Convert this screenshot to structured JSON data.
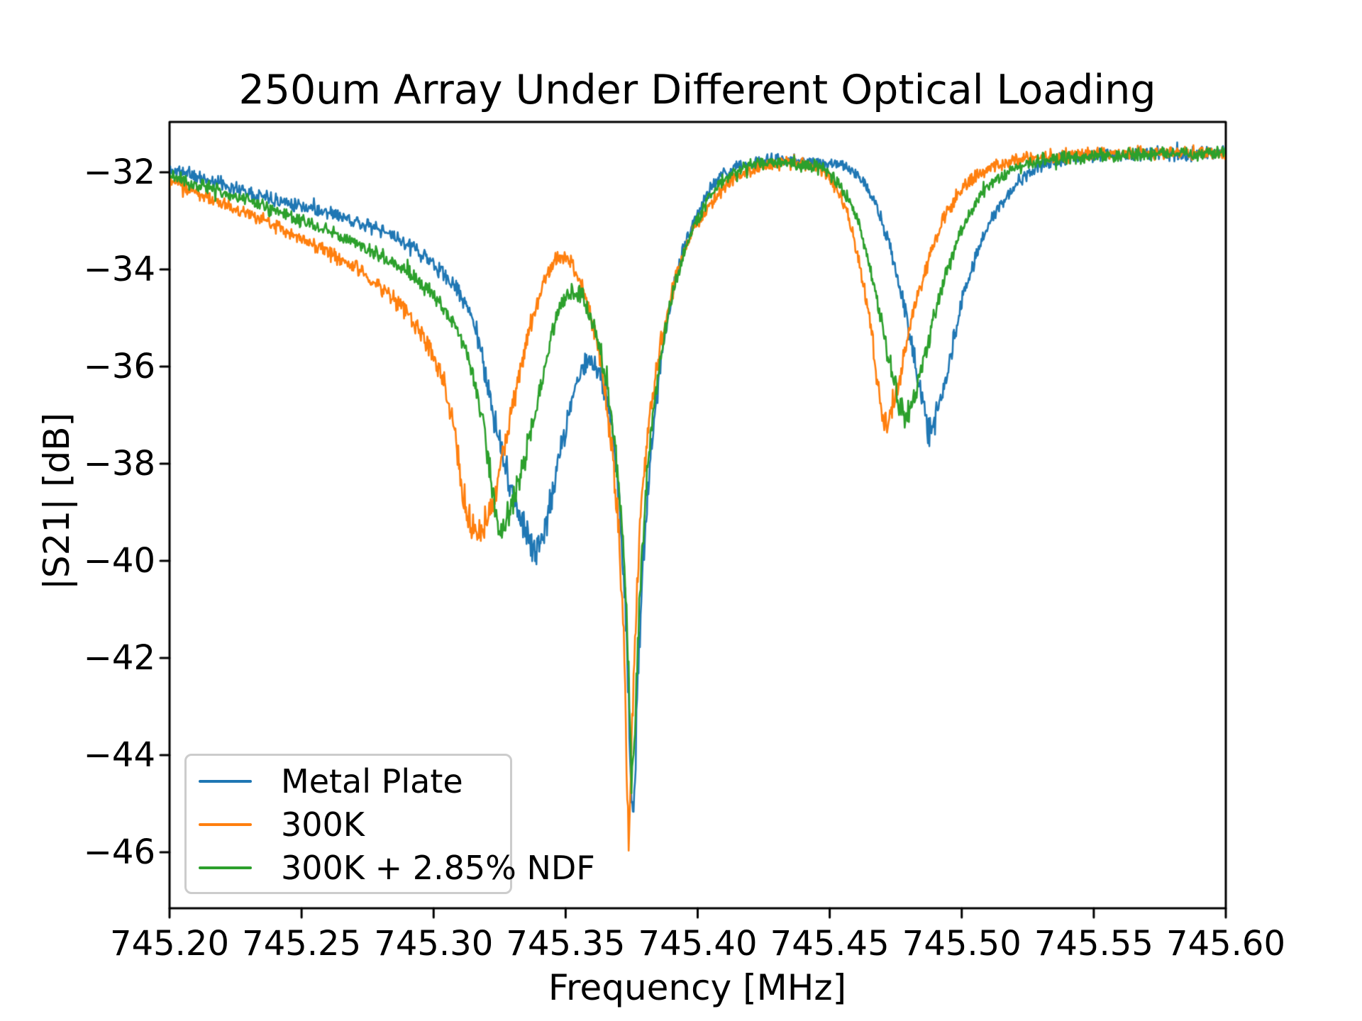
{
  "title": "250um Array Under Different Optical Loading",
  "axes": {
    "x": {
      "label": "Frequency [MHz]",
      "min": 745.2,
      "max": 745.6,
      "tick_values": [
        745.2,
        745.25,
        745.3,
        745.35,
        745.4,
        745.45,
        745.5,
        745.55,
        745.6
      ],
      "tick_labels": [
        "745.20",
        "745.25",
        "745.30",
        "745.35",
        "745.40",
        "745.45",
        "745.50",
        "745.55",
        "745.60"
      ]
    },
    "y": {
      "label": "|S21| [dB]",
      "min": -47.15,
      "max": -30.96,
      "tick_values": [
        -32,
        -34,
        -36,
        -38,
        -40,
        -42,
        -44,
        -46
      ],
      "tick_labels": [
        "−32",
        "−34",
        "−36",
        "−38",
        "−40",
        "−42",
        "−44",
        "−46"
      ]
    }
  },
  "chart_data": {
    "type": "line",
    "title": "250um Array Under Different Optical Loading",
    "xlabel": "Frequency [MHz]",
    "ylabel": "|S21| [dB]",
    "xlim": [
      745.2,
      745.6
    ],
    "ylim": [
      -47.15,
      -30.96
    ],
    "grid": false,
    "legend_position": "lower left",
    "series": [
      {
        "name": "Metal Plate",
        "color": "#1f77b4",
        "seed": 11,
        "anchors": [
          [
            745.2,
            -31.95
          ],
          [
            745.212,
            -32.12
          ],
          [
            745.225,
            -32.32
          ],
          [
            745.24,
            -32.55
          ],
          [
            745.255,
            -32.75
          ],
          [
            745.27,
            -33.0
          ],
          [
            745.284,
            -33.3
          ],
          [
            745.296,
            -33.7
          ],
          [
            745.305,
            -34.15
          ],
          [
            745.311,
            -34.6
          ],
          [
            745.316,
            -35.2
          ],
          [
            745.32,
            -36.3
          ],
          [
            745.325,
            -37.6
          ],
          [
            745.33,
            -38.6
          ],
          [
            745.334,
            -39.3
          ],
          [
            745.338,
            -39.7
          ],
          [
            745.341,
            -39.5
          ],
          [
            745.345,
            -38.6
          ],
          [
            745.349,
            -37.5
          ],
          [
            745.3525,
            -36.7
          ],
          [
            745.356,
            -36.1
          ],
          [
            745.36,
            -35.95
          ],
          [
            745.364,
            -36.35
          ],
          [
            745.367,
            -37.1
          ],
          [
            745.37,
            -38.6
          ],
          [
            745.372,
            -40.2
          ],
          [
            745.3735,
            -42.2
          ],
          [
            745.3748,
            -44.6
          ],
          [
            745.3755,
            -45.2
          ],
          [
            745.3763,
            -44.4
          ],
          [
            745.377,
            -42.8
          ],
          [
            745.3785,
            -41.0
          ],
          [
            745.38,
            -39.4
          ],
          [
            745.382,
            -38.0
          ],
          [
            745.385,
            -36.4
          ],
          [
            745.388,
            -35.2
          ],
          [
            745.392,
            -34.1
          ],
          [
            745.397,
            -33.2
          ],
          [
            745.403,
            -32.5
          ],
          [
            745.41,
            -32.05
          ],
          [
            745.418,
            -31.85
          ],
          [
            745.43,
            -31.75
          ],
          [
            745.442,
            -31.78
          ],
          [
            745.455,
            -31.85
          ],
          [
            745.462,
            -32.15
          ],
          [
            745.468,
            -32.75
          ],
          [
            745.473,
            -33.6
          ],
          [
            745.478,
            -34.7
          ],
          [
            745.482,
            -35.8
          ],
          [
            745.4855,
            -36.8
          ],
          [
            745.4875,
            -37.3
          ],
          [
            745.489,
            -37.25
          ],
          [
            745.492,
            -36.7
          ],
          [
            745.4955,
            -35.8
          ],
          [
            745.5,
            -34.7
          ],
          [
            745.505,
            -33.8
          ],
          [
            745.511,
            -33.0
          ],
          [
            745.518,
            -32.4
          ],
          [
            745.527,
            -31.95
          ],
          [
            745.538,
            -31.75
          ],
          [
            745.555,
            -31.65
          ],
          [
            745.58,
            -31.62
          ],
          [
            745.6,
            -31.6
          ]
        ]
      },
      {
        "name": "300K",
        "color": "#ff7f0e",
        "seed": 23,
        "anchors": [
          [
            745.2,
            -32.2
          ],
          [
            745.212,
            -32.45
          ],
          [
            745.225,
            -32.75
          ],
          [
            745.24,
            -33.1
          ],
          [
            745.255,
            -33.5
          ],
          [
            745.268,
            -33.9
          ],
          [
            745.28,
            -34.35
          ],
          [
            745.29,
            -34.9
          ],
          [
            745.2975,
            -35.5
          ],
          [
            745.3035,
            -36.3
          ],
          [
            745.308,
            -37.3
          ],
          [
            745.3115,
            -38.7
          ],
          [
            745.314,
            -39.3
          ],
          [
            745.317,
            -39.35
          ],
          [
            745.32,
            -39.1
          ],
          [
            745.3225,
            -38.7
          ],
          [
            745.326,
            -37.8
          ],
          [
            745.33,
            -36.8
          ],
          [
            745.334,
            -35.8
          ],
          [
            745.338,
            -34.9
          ],
          [
            745.342,
            -34.2
          ],
          [
            745.3455,
            -33.85
          ],
          [
            745.349,
            -33.75
          ],
          [
            745.3525,
            -33.9
          ],
          [
            745.356,
            -34.35
          ],
          [
            745.36,
            -35.1
          ],
          [
            745.3635,
            -36.0
          ],
          [
            745.3665,
            -37.2
          ],
          [
            745.369,
            -38.6
          ],
          [
            745.371,
            -40.3
          ],
          [
            745.3725,
            -42.5
          ],
          [
            745.3737,
            -45.3
          ],
          [
            745.3744,
            -45.0
          ],
          [
            745.3752,
            -43.2
          ],
          [
            745.3765,
            -41.2
          ],
          [
            745.378,
            -39.5
          ],
          [
            745.38,
            -38.0
          ],
          [
            745.3825,
            -36.8
          ],
          [
            745.3855,
            -35.7
          ],
          [
            745.389,
            -34.75
          ],
          [
            745.393,
            -33.95
          ],
          [
            745.398,
            -33.25
          ],
          [
            745.404,
            -32.7
          ],
          [
            745.411,
            -32.25
          ],
          [
            745.42,
            -31.95
          ],
          [
            745.432,
            -31.8
          ],
          [
            745.442,
            -31.85
          ],
          [
            745.45,
            -32.1
          ],
          [
            745.456,
            -32.75
          ],
          [
            745.461,
            -33.8
          ],
          [
            745.465,
            -35.0
          ],
          [
            745.468,
            -36.2
          ],
          [
            745.47,
            -36.95
          ],
          [
            745.4725,
            -37.1
          ],
          [
            745.475,
            -36.6
          ],
          [
            745.478,
            -35.8
          ],
          [
            745.482,
            -34.8
          ],
          [
            745.487,
            -33.9
          ],
          [
            745.492,
            -33.1
          ],
          [
            745.498,
            -32.5
          ],
          [
            745.505,
            -32.1
          ],
          [
            745.514,
            -31.85
          ],
          [
            745.528,
            -31.7
          ],
          [
            745.55,
            -31.63
          ],
          [
            745.58,
            -31.6
          ],
          [
            745.6,
            -31.6
          ]
        ]
      },
      {
        "name": "300K + 2.85% NDF",
        "color": "#2ca02c",
        "seed": 37,
        "anchors": [
          [
            745.2,
            -32.1
          ],
          [
            745.212,
            -32.28
          ],
          [
            745.225,
            -32.5
          ],
          [
            745.24,
            -32.8
          ],
          [
            745.255,
            -33.1
          ],
          [
            745.27,
            -33.45
          ],
          [
            745.284,
            -33.85
          ],
          [
            745.296,
            -34.3
          ],
          [
            745.304,
            -34.8
          ],
          [
            745.31,
            -35.4
          ],
          [
            745.315,
            -36.2
          ],
          [
            745.319,
            -37.3
          ],
          [
            745.322,
            -38.4
          ],
          [
            745.3245,
            -39.25
          ],
          [
            745.327,
            -39.2
          ],
          [
            745.33,
            -38.8
          ],
          [
            745.334,
            -38.0
          ],
          [
            745.338,
            -37.0
          ],
          [
            745.342,
            -36.0
          ],
          [
            745.346,
            -35.1
          ],
          [
            745.35,
            -34.55
          ],
          [
            745.354,
            -34.45
          ],
          [
            745.358,
            -34.75
          ],
          [
            745.362,
            -35.4
          ],
          [
            745.366,
            -36.5
          ],
          [
            745.369,
            -37.8
          ],
          [
            745.371,
            -39.1
          ],
          [
            745.373,
            -41.0
          ],
          [
            745.3745,
            -43.5
          ],
          [
            745.3752,
            -44.4
          ],
          [
            745.376,
            -43.5
          ],
          [
            745.3773,
            -41.6
          ],
          [
            745.379,
            -39.8
          ],
          [
            745.381,
            -38.2
          ],
          [
            745.384,
            -36.6
          ],
          [
            745.3875,
            -35.3
          ],
          [
            745.392,
            -34.2
          ],
          [
            745.397,
            -33.3
          ],
          [
            745.403,
            -32.65
          ],
          [
            745.41,
            -32.15
          ],
          [
            745.419,
            -31.88
          ],
          [
            745.432,
            -31.8
          ],
          [
            745.448,
            -31.95
          ],
          [
            745.455,
            -32.35
          ],
          [
            745.461,
            -33.1
          ],
          [
            745.466,
            -34.1
          ],
          [
            745.47,
            -35.2
          ],
          [
            745.474,
            -36.2
          ],
          [
            745.477,
            -36.85
          ],
          [
            745.479,
            -37.0
          ],
          [
            745.4815,
            -36.7
          ],
          [
            745.485,
            -36.0
          ],
          [
            745.489,
            -35.1
          ],
          [
            745.494,
            -34.1
          ],
          [
            745.5,
            -33.2
          ],
          [
            745.507,
            -32.5
          ],
          [
            745.516,
            -32.05
          ],
          [
            745.528,
            -31.78
          ],
          [
            745.548,
            -31.67
          ],
          [
            745.575,
            -31.62
          ],
          [
            745.6,
            -31.6
          ]
        ]
      }
    ],
    "noise": {
      "base_amp_db": 0.1,
      "depth_amp_factor": 0.026,
      "depth_threshold_db": -33.5,
      "spike_prob": 0.012,
      "samples": 1500
    }
  },
  "styles": {
    "spine_color": "#000000",
    "legend_border_color": "#cccccc",
    "background": "#ffffff"
  }
}
